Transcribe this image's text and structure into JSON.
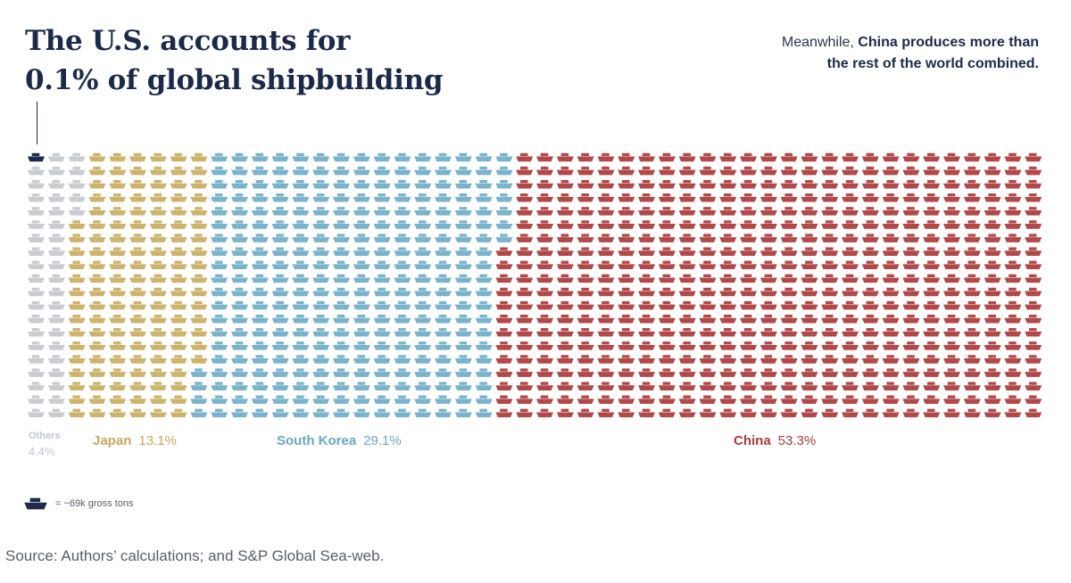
{
  "title_lines": [
    "The U.S. accounts for",
    "0.1% of global shipbuilding"
  ],
  "note": {
    "prefix": "Meanwhile, ",
    "bold": "China produces more than the rest of the world combined."
  },
  "legend_key": "= ~69k gross tons",
  "source": "Source: Authors’ calculations; and S&P Global Sea-web.",
  "colors": {
    "us": "#1c2a4a",
    "others": "#c9ccd1",
    "japan": "#cdb36c",
    "south_korea": "#7ab3cc",
    "china": "#b24848"
  },
  "icon": "ship-icon",
  "chart_data": {
    "type": "waffle",
    "unit": "~69k gross tons",
    "categories": [
      {
        "name": "U.S.",
        "percent": 0.1,
        "color": "#1c2a4a"
      },
      {
        "name": "Others",
        "percent": 4.4,
        "color": "#c9ccd1"
      },
      {
        "name": "Japan",
        "percent": 13.1,
        "color": "#cdb36c"
      },
      {
        "name": "South Korea",
        "percent": 29.1,
        "color": "#7ab3cc"
      },
      {
        "name": "China",
        "percent": 53.3,
        "color": "#b24848"
      }
    ],
    "labels": {
      "others": {
        "name": "Others",
        "pct": "4.4%"
      },
      "japan": {
        "name": "Japan",
        "pct": "13.1%"
      },
      "south_korea": {
        "name": "South Korea",
        "pct": "29.1%"
      },
      "china": {
        "name": "China",
        "pct": "53.3%"
      }
    }
  }
}
